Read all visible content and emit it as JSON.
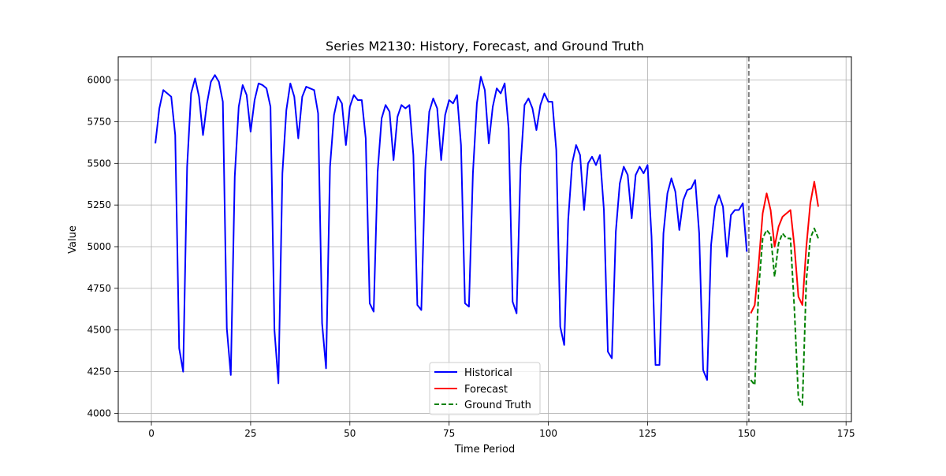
{
  "chart_data": {
    "type": "line",
    "title": "Series M2130: History, Forecast, and Ground Truth",
    "xlabel": "Time Period",
    "ylabel": "Value",
    "xlim": [
      -8.35,
      176.35
    ],
    "ylim": [
      3950,
      6140
    ],
    "xticks": [
      0,
      25,
      50,
      75,
      100,
      125,
      150,
      175
    ],
    "yticks": [
      4000,
      4250,
      4500,
      4750,
      5000,
      5250,
      5500,
      5750,
      6000
    ],
    "grid": true,
    "legend_position": "lower center",
    "forecast_start_marker": 150.5,
    "series": [
      {
        "name": "Historical",
        "color": "#0000ff",
        "style": "solid",
        "x_start": 1,
        "values": [
          5620,
          5830,
          5940,
          5920,
          5900,
          5670,
          4390,
          4250,
          5480,
          5920,
          6010,
          5900,
          5670,
          5860,
          5990,
          6030,
          5990,
          5870,
          4510,
          4230,
          5420,
          5840,
          5970,
          5910,
          5690,
          5880,
          5980,
          5970,
          5950,
          5840,
          4500,
          4180,
          5440,
          5820,
          5980,
          5900,
          5650,
          5900,
          5960,
          5950,
          5940,
          5800,
          4540,
          4270,
          5480,
          5790,
          5900,
          5860,
          5610,
          5840,
          5910,
          5880,
          5880,
          5650,
          4660,
          4610,
          5450,
          5770,
          5850,
          5810,
          5520,
          5780,
          5850,
          5830,
          5850,
          5550,
          4650,
          4620,
          5460,
          5810,
          5890,
          5830,
          5520,
          5790,
          5880,
          5860,
          5910,
          5610,
          4660,
          4640,
          5440,
          5860,
          6020,
          5940,
          5620,
          5840,
          5950,
          5920,
          5980,
          5710,
          4670,
          4600,
          5480,
          5850,
          5890,
          5830,
          5700,
          5850,
          5920,
          5870,
          5870,
          5580,
          4520,
          4410,
          5160,
          5500,
          5610,
          5550,
          5220,
          5500,
          5540,
          5490,
          5550,
          5220,
          4370,
          4330,
          5090,
          5380,
          5480,
          5430,
          5170,
          5430,
          5480,
          5440,
          5490,
          5060,
          4290,
          4290,
          5080,
          5320,
          5410,
          5330,
          5100,
          5280,
          5340,
          5350,
          5400,
          5080,
          4260,
          4200,
          5010,
          5240,
          5310,
          5240,
          4940,
          5190,
          5220,
          5220,
          5260,
          4970
        ]
      },
      {
        "name": "Forecast",
        "color": "#ff0000",
        "style": "solid",
        "x_start": 151,
        "values": [
          4600,
          4650,
          4900,
          5200,
          5320,
          5220,
          5000,
          5120,
          5180,
          5200,
          5220,
          5000,
          4700,
          4650,
          5000,
          5260,
          5390,
          5240
        ]
      },
      {
        "name": "Ground Truth",
        "color": "#008000",
        "style": "dashed",
        "x_start": 151,
        "values": [
          4200,
          4170,
          4750,
          5050,
          5100,
          5070,
          4820,
          5020,
          5080,
          5050,
          5050,
          4620,
          4090,
          4050,
          4800,
          5050,
          5110,
          5050
        ]
      }
    ]
  }
}
